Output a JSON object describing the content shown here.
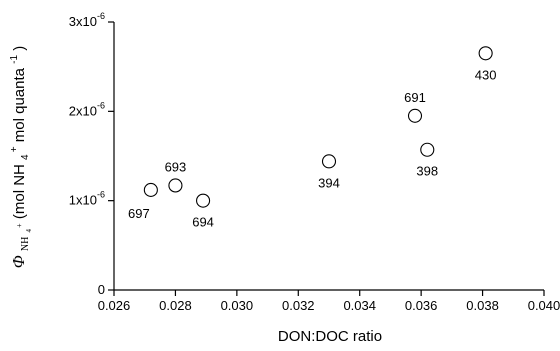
{
  "chart_data": {
    "type": "scatter",
    "xlabel": "DON:DOC ratio",
    "ylabel": {
      "phi": "Φ",
      "phi_sub": "NH",
      "phi_sub_sub": "4",
      "phi_sub_sup": "+",
      "open": " (mol NH",
      "nh4_sub": "4",
      "nh4_sup": "+",
      "mid": " mol quanta",
      "quanta_sup": "-1",
      "close": ")"
    },
    "xlim": [
      0.026,
      0.04
    ],
    "ylim": [
      0,
      3e-06
    ],
    "x_ticks": [
      "0.026",
      "0.028",
      "0.030",
      "0.032",
      "0.034",
      "0.036",
      "0.038",
      "0.040"
    ],
    "y_ticks": [
      {
        "value": 0,
        "base": "0",
        "exp": ""
      },
      {
        "value": 1e-06,
        "base": "1x10",
        "exp": "-6"
      },
      {
        "value": 2e-06,
        "base": "2x10",
        "exp": "-6"
      },
      {
        "value": 3e-06,
        "base": "3x10",
        "exp": "-6"
      }
    ],
    "grid": false,
    "points": [
      {
        "x": 0.0272,
        "y": 1.12e-06,
        "label": "697",
        "label_pos": "below-left"
      },
      {
        "x": 0.028,
        "y": 1.17e-06,
        "label": "693",
        "label_pos": "above"
      },
      {
        "x": 0.0289,
        "y": 1e-06,
        "label": "694",
        "label_pos": "below"
      },
      {
        "x": 0.033,
        "y": 1.44e-06,
        "label": "394",
        "label_pos": "below"
      },
      {
        "x": 0.0358,
        "y": 1.95e-06,
        "label": "691",
        "label_pos": "above"
      },
      {
        "x": 0.0362,
        "y": 1.57e-06,
        "label": "398",
        "label_pos": "below"
      },
      {
        "x": 0.0381,
        "y": 2.65e-06,
        "label": "430",
        "label_pos": "below"
      }
    ]
  }
}
